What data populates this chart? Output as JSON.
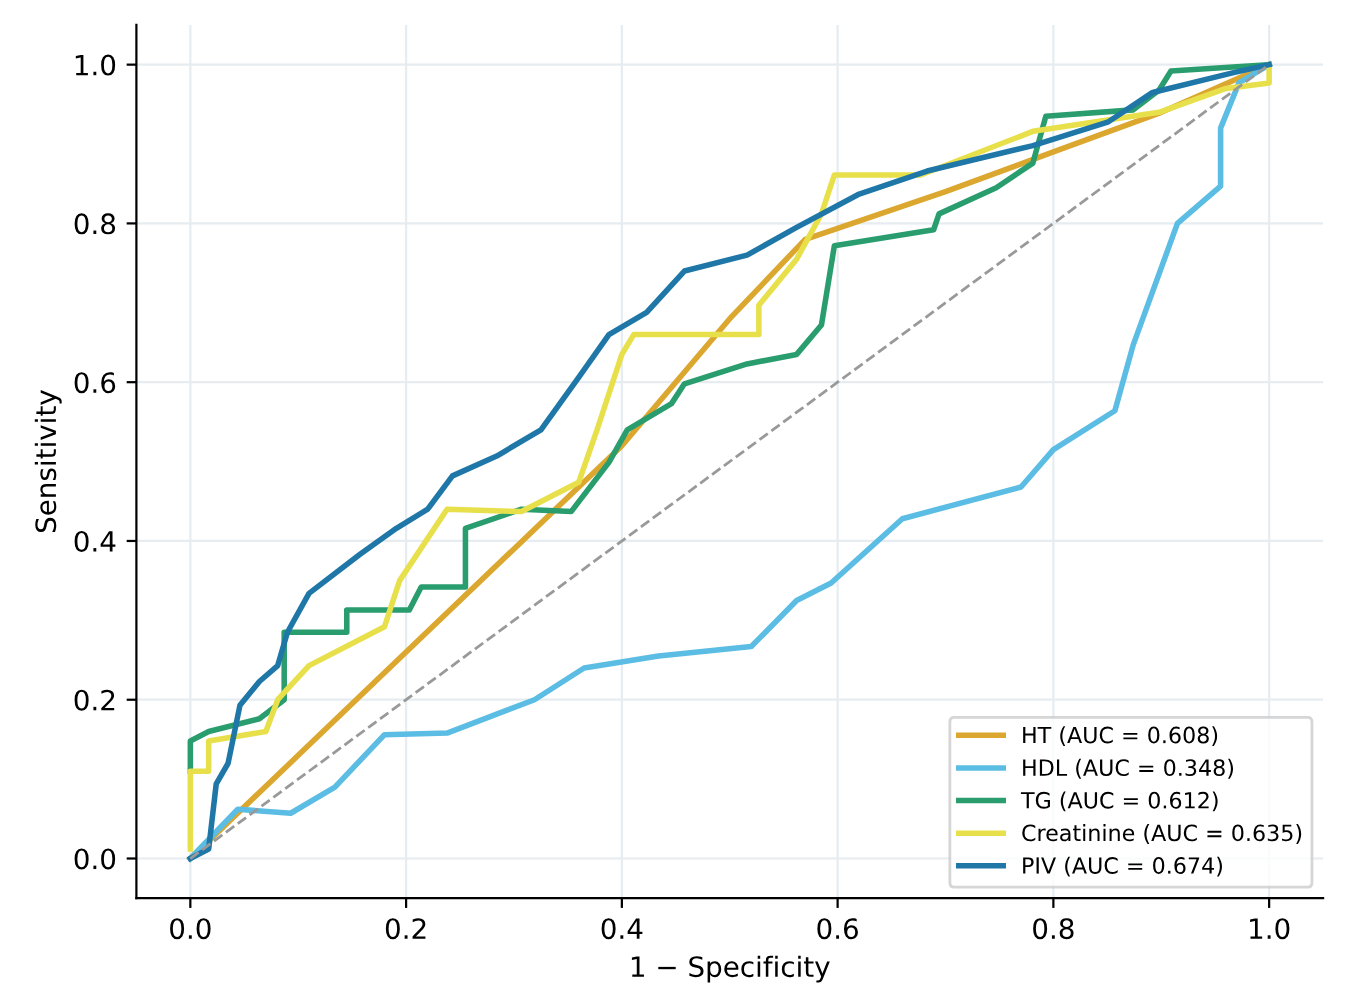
{
  "chart_data": {
    "type": "line",
    "xlabel": "1 − Specificity",
    "ylabel": "Sensitivity",
    "xlim": [
      -0.05,
      1.05
    ],
    "ylim": [
      -0.05,
      1.05
    ],
    "xticks": [
      {
        "value": 0,
        "label": "0.0"
      },
      0.2,
      0.4,
      0.6,
      0.8,
      {
        "value": 1,
        "label": "1.0"
      }
    ],
    "yticks": [
      {
        "value": 0,
        "label": "0.0"
      },
      0.2,
      0.4,
      0.6,
      0.8,
      {
        "value": 1,
        "label": "1.0"
      }
    ],
    "grid": true,
    "legend": "bottom right",
    "series": [
      {
        "name": "HT (AUC = 0.608)",
        "color": "#dba72e",
        "x": [
          0,
          0.1,
          0.2,
          0.3,
          0.4,
          0.5,
          0.57,
          0.7,
          0.8,
          0.9,
          1
        ],
        "values": [
          0,
          0.13,
          0.26,
          0.39,
          0.52,
          0.68,
          0.78,
          0.84,
          0.89,
          0.94,
          1
        ]
      },
      {
        "name": "HDL (AUC = 0.348)",
        "color": "#5bbce4",
        "x": [
          0,
          0.044,
          0.093,
          0.134,
          0.18,
          0.238,
          0.319,
          0.365,
          0.434,
          0.52,
          0.562,
          0.594,
          0.66,
          0.77,
          0.8,
          0.857,
          0.874,
          0.915,
          0.955,
          0.955,
          0.972,
          1
        ],
        "values": [
          0,
          0.062,
          0.057,
          0.09,
          0.156,
          0.158,
          0.2,
          0.24,
          0.255,
          0.267,
          0.325,
          0.347,
          0.428,
          0.468,
          0.515,
          0.564,
          0.647,
          0.8,
          0.847,
          0.92,
          0.977,
          1
        ]
      },
      {
        "name": "TG (AUC = 0.612)",
        "color": "#2a9d6f",
        "x": [
          0,
          0,
          0.017,
          0.064,
          0.087,
          0.087,
          0.145,
          0.145,
          0.203,
          0.214,
          0.255,
          0.255,
          0.307,
          0.353,
          0.388,
          0.405,
          0.446,
          0.458,
          0.516,
          0.562,
          0.585,
          0.597,
          0.689,
          0.694,
          0.747,
          0.781,
          0.793,
          0.874,
          0.898,
          0.909,
          1
        ],
        "values": [
          0.11,
          0.148,
          0.16,
          0.176,
          0.2,
          0.285,
          0.285,
          0.313,
          0.313,
          0.342,
          0.342,
          0.416,
          0.44,
          0.437,
          0.499,
          0.54,
          0.573,
          0.598,
          0.623,
          0.635,
          0.672,
          0.772,
          0.792,
          0.812,
          0.845,
          0.876,
          0.935,
          0.943,
          0.968,
          0.992,
          1
        ]
      },
      {
        "name": "Creatinine (AUC = 0.635)",
        "color": "#e8e04a",
        "x": [
          0,
          0,
          0.017,
          0.017,
          0.07,
          0.081,
          0.11,
          0.18,
          0.194,
          0.238,
          0.307,
          0.36,
          0.377,
          0.4,
          0.411,
          0.527,
          0.527,
          0.562,
          0.585,
          0.597,
          0.677,
          0.781,
          0.898,
          0.96,
          1,
          1
        ],
        "values": [
          0.012,
          0.11,
          0.11,
          0.148,
          0.16,
          0.2,
          0.243,
          0.292,
          0.35,
          0.44,
          0.437,
          0.474,
          0.54,
          0.635,
          0.66,
          0.66,
          0.697,
          0.755,
          0.812,
          0.861,
          0.861,
          0.916,
          0.94,
          0.97,
          0.977,
          1
        ]
      },
      {
        "name": "PIV (AUC = 0.674)",
        "color": "#1f77a8",
        "x": [
          0,
          0.017,
          0.024,
          0.035,
          0.046,
          0.064,
          0.081,
          0.09,
          0.11,
          0.157,
          0.191,
          0.22,
          0.243,
          0.284,
          0.325,
          0.36,
          0.388,
          0.423,
          0.458,
          0.516,
          0.562,
          0.62,
          0.683,
          0.781,
          0.851,
          0.892,
          0.967,
          1
        ],
        "values": [
          0,
          0.012,
          0.094,
          0.12,
          0.193,
          0.223,
          0.243,
          0.285,
          0.334,
          0.383,
          0.416,
          0.44,
          0.482,
          0.507,
          0.54,
          0.606,
          0.66,
          0.688,
          0.74,
          0.76,
          0.795,
          0.837,
          0.866,
          0.898,
          0.928,
          0.965,
          0.99,
          1
        ]
      },
      {
        "color": "#999999",
        "line_style": "dashed",
        "x": [
          0,
          1
        ],
        "values": [
          0,
          1
        ]
      }
    ]
  }
}
